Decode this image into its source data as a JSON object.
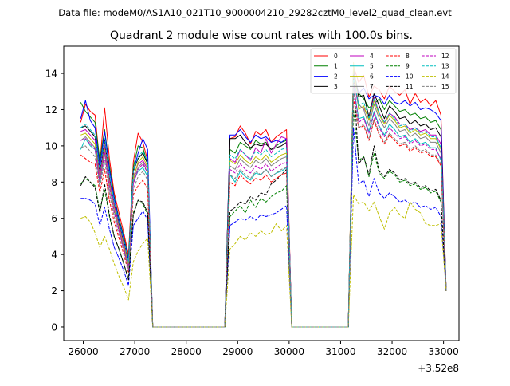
{
  "header": {
    "data_file": "Data file: modeM0/AS1A10_021T10_9000004210_29282cztM0_level2_quad_clean.evt"
  },
  "chart_data": {
    "type": "line",
    "title": "Quadrant 2 module wise count rates with 100.0s bins.",
    "xlabel": "",
    "ylabel": "",
    "x_offset_label": "+3.52e8",
    "xlim": [
      25620,
      33300
    ],
    "ylim": [
      -0.75,
      15.5
    ],
    "xticks": [
      26000,
      27000,
      28000,
      29000,
      30000,
      31000,
      32000,
      33000
    ],
    "xtick_labels": [
      "26000",
      "27000",
      "28000",
      "29000",
      "30000",
      "31000",
      "32000",
      "33000"
    ],
    "yticks": [
      0,
      2,
      4,
      6,
      8,
      10,
      12,
      14
    ],
    "ytick_labels": [
      "0",
      "2",
      "4",
      "6",
      "8",
      "10",
      "12",
      "14"
    ],
    "grid": false,
    "legend": {
      "placement": "top-right",
      "columns": 4
    },
    "gap_regions": [
      [
        27350,
        28750
      ],
      [
        30050,
        31150
      ]
    ],
    "segments": [
      {
        "x_start": 25950,
        "x_end": 27250
      },
      {
        "x_start": 28850,
        "x_end": 29950
      },
      {
        "x_start": 31250,
        "x_end": 32950
      }
    ],
    "series": [
      {
        "name": "0",
        "color": "#ff0000",
        "dashed": false,
        "seg_values": [
          [
            11.3,
            12.3,
            11.9,
            11.7,
            9.0,
            12.1,
            9.3,
            7.4,
            6.3,
            5.2,
            4.0,
            9.1,
            10.7,
            10.2,
            9.2
          ],
          [
            10.4,
            10.5,
            11.1,
            10.7,
            10.1,
            10.8,
            10.6,
            10.9,
            10.2,
            10.5,
            10.7,
            10.9
          ],
          [
            14.4,
            13.5,
            13.9,
            12.7,
            13.3,
            13.1,
            12.6,
            13.3,
            13.0,
            12.8,
            13.1,
            12.3,
            12.9,
            12.4,
            12.6,
            12.2,
            12.5,
            11.7
          ]
        ]
      },
      {
        "name": "1",
        "color": "#008000",
        "dashed": false,
        "seg_values": [
          [
            12.4,
            11.9,
            11.6,
            11.3,
            9.2,
            10.9,
            8.9,
            7.2,
            6.0,
            5.0,
            3.8,
            8.8,
            10.0,
            9.9,
            9.0
          ],
          [
            9.8,
            9.6,
            10.2,
            10.0,
            9.8,
            10.3,
            10.1,
            10.2,
            9.8,
            10.0,
            10.2,
            10.3
          ],
          [
            13.9,
            12.9,
            12.6,
            12.1,
            12.3,
            12.6,
            12.0,
            12.5,
            12.2,
            11.9,
            12.0,
            11.7,
            11.8,
            11.5,
            11.6,
            11.3,
            11.4,
            10.9
          ]
        ]
      },
      {
        "name": "2",
        "color": "#0000ff",
        "dashed": false,
        "seg_values": [
          [
            11.5,
            12.5,
            11.4,
            11.0,
            8.8,
            10.8,
            8.7,
            7.1,
            5.9,
            4.9,
            3.7,
            8.6,
            9.6,
            10.4,
            9.8
          ],
          [
            10.6,
            10.6,
            10.9,
            10.5,
            10.2,
            10.6,
            10.4,
            10.5,
            10.2,
            10.3,
            10.2,
            10.4
          ],
          [
            14.1,
            12.9,
            13.2,
            12.6,
            12.8,
            12.7,
            12.3,
            12.8,
            12.4,
            12.3,
            12.5,
            12.2,
            12.4,
            12.0,
            12.1,
            12.0,
            11.8,
            11.4
          ]
        ]
      },
      {
        "name": "3",
        "color": "#000000",
        "dashed": false,
        "seg_values": [
          [
            11.0,
            11.1,
            10.8,
            10.5,
            8.5,
            10.3,
            8.3,
            6.8,
            5.7,
            4.7,
            3.5,
            8.6,
            9.3,
            9.6,
            9.0
          ],
          [
            10.4,
            10.4,
            10.6,
            10.2,
            9.9,
            10.1,
            10.0,
            10.1,
            9.8,
            9.9,
            10.0,
            10.2
          ],
          [
            14.3,
            12.7,
            12.8,
            11.6,
            12.9,
            12.2,
            11.5,
            12.2,
            11.9,
            11.5,
            11.6,
            11.2,
            11.4,
            11.1,
            11.2,
            10.9,
            11.0,
            10.5
          ]
        ]
      },
      {
        "name": "4",
        "color": "#bf00bf",
        "dashed": false,
        "seg_values": [
          [
            10.8,
            10.9,
            10.6,
            10.3,
            8.3,
            10.0,
            8.1,
            6.7,
            5.6,
            4.6,
            3.5,
            8.3,
            9.0,
            9.2,
            8.7
          ],
          [
            9.3,
            9.1,
            9.8,
            9.5,
            9.2,
            9.9,
            9.6,
            10.4,
            9.6,
            10.1,
            10.5,
            10.4
          ],
          [
            13.7,
            12.1,
            12.1,
            11.5,
            12.7,
            11.8,
            11.3,
            11.8,
            11.6,
            11.2,
            11.2,
            10.9,
            11.0,
            10.8,
            10.9,
            10.6,
            10.6,
            10.1
          ]
        ]
      },
      {
        "name": "5",
        "color": "#00bfbf",
        "dashed": false,
        "seg_values": [
          [
            9.8,
            10.4,
            10.0,
            9.8,
            7.9,
            9.6,
            7.8,
            6.4,
            5.4,
            4.4,
            3.3,
            8.0,
            8.6,
            8.8,
            8.3
          ],
          [
            8.4,
            8.0,
            8.6,
            8.3,
            8.1,
            8.5,
            8.4,
            8.7,
            8.3,
            8.5,
            8.6,
            8.8
          ],
          [
            13.3,
            11.5,
            11.6,
            10.8,
            11.9,
            11.1,
            10.6,
            11.2,
            10.9,
            10.5,
            10.6,
            10.2,
            10.4,
            10.1,
            10.2,
            9.9,
            9.9,
            9.2
          ]
        ]
      },
      {
        "name": "6",
        "color": "#bfbf00",
        "dashed": false,
        "seg_values": [
          [
            10.6,
            10.7,
            10.4,
            10.1,
            8.1,
            9.8,
            7.9,
            6.5,
            5.5,
            4.5,
            3.4,
            8.2,
            9.1,
            9.4,
            8.8
          ],
          [
            9.2,
            9.0,
            9.5,
            9.2,
            9.0,
            9.4,
            9.2,
            9.5,
            9.1,
            9.3,
            9.5,
            9.6
          ],
          [
            14.6,
            12.0,
            12.2,
            11.4,
            12.5,
            11.7,
            11.2,
            11.7,
            11.4,
            11.0,
            11.1,
            10.7,
            10.9,
            10.6,
            10.7,
            10.4,
            10.4,
            9.8
          ]
        ]
      },
      {
        "name": "7",
        "color": "#808080",
        "dashed": false,
        "seg_values": [
          [
            10.3,
            10.5,
            10.2,
            9.9,
            8.0,
            9.7,
            7.8,
            6.4,
            5.4,
            4.4,
            3.3,
            8.1,
            8.8,
            9.1,
            8.5
          ],
          [
            8.9,
            8.7,
            9.3,
            9.0,
            8.8,
            9.2,
            9.0,
            9.3,
            8.9,
            9.1,
            9.3,
            9.4
          ],
          [
            13.9,
            12.3,
            12.0,
            11.1,
            12.3,
            11.5,
            11.0,
            11.5,
            11.2,
            10.8,
            10.9,
            10.5,
            10.7,
            10.4,
            10.5,
            10.2,
            10.2,
            9.6
          ]
        ]
      },
      {
        "name": "8",
        "color": "#ff0000",
        "dashed": true,
        "seg_values": [
          [
            9.5,
            9.3,
            9.1,
            9.0,
            7.4,
            8.7,
            7.0,
            5.8,
            4.9,
            4.0,
            3.0,
            7.3,
            7.8,
            8.1,
            7.6
          ],
          [
            8.0,
            7.8,
            8.4,
            8.1,
            7.9,
            8.2,
            8.1,
            8.4,
            8.0,
            8.2,
            8.4,
            8.5
          ],
          [
            12.6,
            11.0,
            11.1,
            10.3,
            11.4,
            10.6,
            10.1,
            10.6,
            10.3,
            10.0,
            10.1,
            9.7,
            9.9,
            9.6,
            9.7,
            9.4,
            9.4,
            8.9
          ]
        ]
      },
      {
        "name": "9",
        "color": "#008000",
        "dashed": true,
        "seg_values": [
          [
            7.9,
            8.2,
            8.0,
            7.8,
            6.4,
            7.6,
            6.1,
            5.0,
            4.3,
            3.5,
            2.6,
            6.3,
            7.0,
            6.8,
            6.2
          ],
          [
            6.1,
            6.4,
            6.7,
            6.3,
            7.0,
            6.6,
            7.1,
            6.9,
            7.2,
            7.4,
            7.5,
            7.8
          ],
          [
            12.0,
            9.2,
            9.4,
            8.3,
            9.6,
            8.5,
            8.2,
            8.6,
            8.4,
            8.0,
            8.1,
            7.8,
            7.9,
            7.6,
            7.7,
            7.4,
            7.5,
            6.9
          ]
        ]
      },
      {
        "name": "10",
        "color": "#0000ff",
        "dashed": true,
        "seg_values": [
          [
            7.1,
            7.1,
            7.0,
            6.8,
            5.6,
            6.6,
            5.4,
            4.4,
            3.8,
            3.1,
            2.3,
            5.6,
            6.0,
            6.4,
            5.9
          ],
          [
            5.6,
            5.8,
            6.0,
            5.9,
            6.1,
            5.9,
            6.2,
            6.1,
            6.2,
            6.3,
            6.5,
            6.7
          ],
          [
            11.0,
            7.9,
            8.1,
            7.2,
            8.2,
            7.4,
            7.1,
            7.4,
            7.2,
            6.9,
            7.0,
            6.8,
            6.9,
            6.6,
            6.7,
            6.5,
            6.6,
            6.1
          ]
        ]
      },
      {
        "name": "11",
        "color": "#000000",
        "dashed": true,
        "seg_values": [
          [
            7.8,
            8.3,
            8.0,
            7.7,
            6.3,
            7.9,
            6.2,
            5.0,
            4.3,
            3.5,
            2.6,
            6.2,
            7.0,
            6.9,
            6.3
          ],
          [
            6.4,
            6.6,
            6.9,
            6.8,
            7.2,
            7.0,
            7.4,
            7.3,
            7.9,
            8.1,
            8.4,
            8.7
          ],
          [
            13.9,
            9.0,
            9.4,
            8.4,
            10.0,
            8.6,
            8.3,
            8.7,
            8.5,
            8.1,
            8.2,
            7.9,
            8.0,
            7.7,
            7.8,
            7.5,
            7.6,
            7.0
          ]
        ]
      },
      {
        "name": "12",
        "color": "#bf00bf",
        "dashed": true,
        "seg_values": [
          [
            10.3,
            10.4,
            10.1,
            9.8,
            8.0,
            9.6,
            7.7,
            6.3,
            5.3,
            4.3,
            3.2,
            7.9,
            8.7,
            9.0,
            8.5
          ],
          [
            8.7,
            8.5,
            9.0,
            8.7,
            8.5,
            8.9,
            8.7,
            9.0,
            8.6,
            8.8,
            9.0,
            9.1
          ],
          [
            13.4,
            11.3,
            11.5,
            10.7,
            11.8,
            11.0,
            10.5,
            11.0,
            10.7,
            10.4,
            10.5,
            10.1,
            10.3,
            10.0,
            10.1,
            9.8,
            9.8,
            9.3
          ]
        ]
      },
      {
        "name": "13",
        "color": "#00bfbf",
        "dashed": true,
        "seg_values": [
          [
            11.0,
            11.2,
            10.9,
            10.6,
            8.6,
            10.4,
            8.4,
            6.9,
            5.8,
            4.8,
            3.6,
            8.6,
            9.4,
            9.7,
            9.1
          ],
          [
            9.5,
            9.3,
            9.8,
            9.5,
            9.3,
            9.7,
            9.5,
            9.8,
            9.4,
            9.6,
            9.8,
            9.9
          ],
          [
            13.8,
            12.2,
            12.4,
            11.5,
            12.6,
            11.8,
            11.3,
            11.8,
            11.5,
            11.1,
            11.2,
            10.8,
            11.0,
            10.7,
            10.8,
            10.5,
            10.5,
            9.9
          ]
        ]
      },
      {
        "name": "14",
        "color": "#bfbf00",
        "dashed": true,
        "seg_values": [
          [
            6.0,
            6.1,
            5.8,
            5.2,
            4.4,
            5.0,
            4.3,
            3.5,
            2.8,
            2.2,
            1.5,
            3.6,
            4.2,
            4.6,
            4.9
          ],
          [
            4.3,
            4.6,
            5.0,
            4.8,
            5.2,
            5.0,
            5.3,
            5.1,
            5.2,
            5.7,
            5.3,
            5.6
          ],
          [
            7.3,
            6.8,
            6.9,
            6.4,
            6.9,
            6.1,
            5.4,
            6.3,
            6.6,
            6.2,
            6.0,
            6.9,
            6.5,
            6.3,
            5.7,
            5.6,
            5.6,
            5.7
          ]
        ]
      },
      {
        "name": "15",
        "color": "#808080",
        "dashed": true,
        "seg_values": [
          [
            9.9,
            10.0,
            9.7,
            9.4,
            7.7,
            9.2,
            7.4,
            6.1,
            5.1,
            4.2,
            3.1,
            7.6,
            8.3,
            8.6,
            8.1
          ],
          [
            8.4,
            8.2,
            8.7,
            8.4,
            8.2,
            8.6,
            8.4,
            8.7,
            8.3,
            8.5,
            8.7,
            8.8
          ],
          [
            13.1,
            11.0,
            11.2,
            10.4,
            11.5,
            10.7,
            10.2,
            10.7,
            10.4,
            10.1,
            10.2,
            9.8,
            10.0,
            9.7,
            9.8,
            9.5,
            9.5,
            9.0
          ]
        ]
      }
    ]
  }
}
